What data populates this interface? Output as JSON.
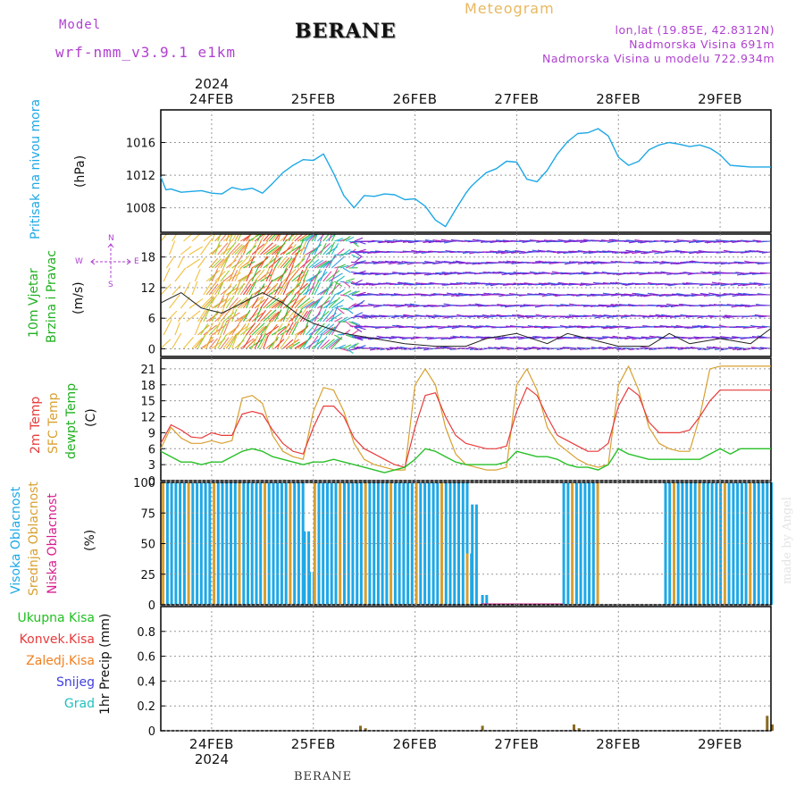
{
  "header": {
    "model_label": "Model",
    "model_name": "wrf-nmm_v3.9.1 e1km",
    "station": "BERANE",
    "product": "Meteogram",
    "lonlat": "lon,lat (19.85E, 42.8312N)",
    "elevation": "Nadmorska Visina 691m",
    "model_elevation": "Nadmorska Visina u modelu 722.934m"
  },
  "footer": {
    "station": "BERANE",
    "watermark": "made by Angel"
  },
  "colors": {
    "pressure": "#1ea8e6",
    "temp2m": "#e83a3a",
    "sfc": "#d8a030",
    "dewpt": "#28c028",
    "cloud_high": "#1ea8e6",
    "cloud_mid": "#d8a030",
    "cloud_low": "#d82090",
    "precip_total": "#20c020",
    "precip_conv": "#e83a3a",
    "precip_frz": "#f08020",
    "snow": "#4040e0",
    "graupel": "#20c0c0",
    "wind_label": "#20b020",
    "compass": "#b040d0"
  },
  "time_axis": {
    "top_year": "2024",
    "bottom_year": "2024",
    "days": [
      "24FEB",
      "25FEB",
      "26FEB",
      "27FEB",
      "28FEB",
      "29FEB"
    ]
  },
  "panels": {
    "pressure": {
      "label1": "Pritisak na nivou mora",
      "unit": "(hPa)"
    },
    "wind": {
      "label1": "10m Vjetar",
      "label2": "Brzina i Pravac",
      "unit": "(m/s)",
      "compass": {
        "n": "N",
        "s": "S",
        "e": "E",
        "w": "W"
      }
    },
    "temp": {
      "label1": "2m Temp",
      "label2": "SFC Temp",
      "label3": "dewpt Temp",
      "unit": "(C)"
    },
    "cloud": {
      "label1": "Visoka Oblacnost",
      "label2": "Srednja Oblacnost",
      "label3": "Niska Oblacnost",
      "unit": "(%)"
    },
    "precip": {
      "legend": [
        "Ukupna Kisa",
        "Konvek.Kisa",
        "Zaledj.Kisa",
        "Snijeg",
        "Grad"
      ],
      "unit": "1hr Precip (mm)"
    }
  },
  "chart_data": [
    {
      "type": "line",
      "panel": "pressure",
      "ylabel": "(hPa)",
      "ylim": [
        1005,
        1020
      ],
      "yticks": [
        1008,
        1012,
        1016
      ],
      "x_day_range": [
        -0.5,
        5.5
      ],
      "x_days": [
        -0.5,
        -0.45,
        -0.4,
        -0.3,
        -0.2,
        -0.1,
        0,
        0.1,
        0.2,
        0.3,
        0.4,
        0.5,
        0.6,
        0.7,
        0.8,
        0.9,
        1.0,
        1.1,
        1.2,
        1.3,
        1.4,
        1.5,
        1.6,
        1.7,
        1.8,
        1.9,
        2.0,
        2.1,
        2.2,
        2.3,
        2.4,
        2.5,
        2.55,
        2.6,
        2.7,
        2.8,
        2.9,
        3.0,
        3.1,
        3.2,
        3.3,
        3.4,
        3.5,
        3.6,
        3.7,
        3.8,
        3.9,
        4.0,
        4.1,
        4.2,
        4.3,
        4.4,
        4.5,
        4.6,
        4.7,
        4.8,
        4.9,
        5.0,
        5.1,
        5.2,
        5.3,
        5.4,
        5.5
      ],
      "series": [
        {
          "values": [
            1011.8,
            1010.2,
            1010.3,
            1009.9,
            1010.0,
            1010.1,
            1009.8,
            1009.7,
            1010.5,
            1010.2,
            1010.4,
            1009.8,
            1011.0,
            1012.3,
            1013.2,
            1013.9,
            1013.8,
            1014.6,
            1012.2,
            1009.5,
            1008.0,
            1009.5,
            1009.4,
            1009.7,
            1009.6,
            1009.0,
            1009.1,
            1008.2,
            1006.5,
            1005.7,
            1007.8,
            1009.8,
            1010.6,
            1011.2,
            1012.3,
            1012.8,
            1013.7,
            1013.6,
            1011.5,
            1011.2,
            1012.6,
            1014.6,
            1016.1,
            1017.1,
            1017.2,
            1017.7,
            1016.8,
            1014.2,
            1013.2,
            1013.7,
            1015.1,
            1015.7,
            1016.0,
            1015.8,
            1015.5,
            1015.7,
            1015.3,
            1014.5,
            1013.2,
            1013.1,
            1013.0,
            1013.0,
            1013.0
          ]
        }
      ]
    },
    {
      "type": "line",
      "panel": "wind",
      "ylabel": "(m/s)",
      "ylim": [
        -1.5,
        22.5
      ],
      "yticks": [
        0,
        6,
        12,
        18
      ],
      "x_day_range": [
        -0.5,
        5.5
      ],
      "x_days": [
        -0.5,
        -0.3,
        -0.1,
        0.1,
        0.3,
        0.5,
        0.7,
        0.9,
        1.0,
        1.3,
        1.6,
        1.9,
        2.2,
        2.5,
        2.7,
        3.0,
        3.3,
        3.5,
        3.7,
        4.0,
        4.3,
        4.5,
        4.7,
        5.0,
        5.3,
        5.5
      ],
      "series": [
        {
          "values": [
            9,
            11,
            8,
            7,
            9,
            11,
            9,
            6,
            5,
            3,
            2,
            1,
            0.5,
            0.5,
            2,
            3,
            1,
            3,
            2,
            0.5,
            0.5,
            3,
            1,
            2,
            1,
            4
          ]
        }
      ]
    },
    {
      "type": "line",
      "panel": "temp",
      "ylabel": "(C)",
      "ylim": [
        0,
        23
      ],
      "yticks": [
        0,
        3,
        6,
        9,
        12,
        15,
        18,
        21
      ],
      "x_day_range": [
        -0.5,
        5.5
      ],
      "x_days": [
        -0.5,
        -0.4,
        -0.3,
        -0.2,
        -0.1,
        0,
        0.1,
        0.2,
        0.3,
        0.4,
        0.5,
        0.6,
        0.7,
        0.8,
        0.9,
        1.0,
        1.1,
        1.2,
        1.3,
        1.4,
        1.5,
        1.6,
        1.7,
        1.8,
        1.9,
        2.0,
        2.1,
        2.2,
        2.3,
        2.4,
        2.5,
        2.6,
        2.7,
        2.8,
        2.9,
        3.0,
        3.1,
        3.2,
        3.3,
        3.4,
        3.5,
        3.6,
        3.7,
        3.8,
        3.9,
        4.0,
        4.1,
        4.2,
        4.3,
        4.4,
        4.5,
        4.6,
        4.7,
        4.8,
        4.9,
        5.0,
        5.1,
        5.2,
        5.3,
        5.4,
        5.5
      ],
      "series": [
        {
          "name": "2m Temp",
          "values": [
            7,
            10.5,
            9.5,
            8.2,
            8.0,
            9.0,
            8.5,
            8.5,
            12.5,
            13.0,
            12.5,
            9.5,
            7.0,
            5.5,
            5.0,
            10.0,
            14.0,
            14.0,
            12.0,
            8.0,
            6.0,
            5.0,
            4.0,
            3.0,
            2.5,
            10.0,
            16.0,
            16.5,
            12.0,
            8.5,
            7.0,
            6.5,
            6.0,
            6.0,
            6.5,
            13.0,
            17.5,
            16.0,
            12.0,
            8.5,
            7.5,
            6.5,
            5.5,
            5.5,
            7.0,
            14.0,
            17.5,
            16.0,
            11.0,
            9.0,
            9.0,
            9.0,
            9.5,
            12.0,
            15.0,
            17.0,
            17,
            17,
            17,
            17,
            17
          ]
        },
        {
          "name": "SFC Temp",
          "values": [
            6,
            10.0,
            8.0,
            7.0,
            7.0,
            7.5,
            7.0,
            7.5,
            15.5,
            16.0,
            14.5,
            8.5,
            5.5,
            4.5,
            4.0,
            13.0,
            17.5,
            17.0,
            13.0,
            7.0,
            4.0,
            3.0,
            2.5,
            2.0,
            2.0,
            18.0,
            21.0,
            18.0,
            10.0,
            5.0,
            3.0,
            2.5,
            2.0,
            2.0,
            2.5,
            18.0,
            21.0,
            17.0,
            10.0,
            7.0,
            5.5,
            4.0,
            3.0,
            2.5,
            3.0,
            18.0,
            21.5,
            17.0,
            10.0,
            7.0,
            6.0,
            5.5,
            5.5,
            12.0,
            21.0,
            21.5,
            21.5,
            21.5,
            21.5,
            21.5,
            21.5
          ]
        },
        {
          "name": "dewpt Temp",
          "values": [
            5.5,
            4.5,
            3.5,
            3.5,
            3.0,
            3.5,
            3.5,
            4.5,
            5.5,
            6.0,
            5.5,
            4.5,
            4.0,
            3.5,
            3.0,
            3.5,
            3.5,
            4.0,
            3.5,
            3.0,
            2.5,
            2.0,
            1.5,
            2.0,
            2.5,
            4.0,
            6.0,
            5.5,
            4.5,
            3.5,
            3.0,
            3.0,
            3.0,
            3.0,
            3.5,
            5.5,
            5.0,
            4.5,
            4.5,
            4.0,
            3.0,
            2.5,
            2.5,
            2.0,
            3.0,
            6.0,
            5.0,
            4.5,
            4.0,
            4.0,
            4.0,
            4.0,
            4.0,
            4.0,
            5.0,
            6.0,
            5.0,
            6.0,
            6.0,
            6.0,
            6.0
          ]
        }
      ]
    },
    {
      "type": "bar",
      "panel": "cloud",
      "ylabel": "(%)",
      "ylim": [
        0,
        100
      ],
      "yticks": [
        0,
        25,
        50,
        75,
        100
      ],
      "x_day_range": [
        -0.5,
        5.5
      ],
      "cover": [
        [
          -0.49,
          0.9,
          100
        ],
        [
          0.9,
          0.95,
          60
        ],
        [
          0.95,
          1.0,
          27
        ],
        [
          1.0,
          1.5,
          100
        ],
        [
          1.5,
          2.5,
          100
        ],
        [
          2.5,
          2.55,
          42
        ],
        [
          2.55,
          2.6,
          82
        ],
        [
          2.65,
          2.7,
          8
        ],
        [
          3.45,
          3.8,
          100
        ],
        [
          4.45,
          5.5,
          100
        ]
      ],
      "series": [
        {
          "name": "Visoka Oblacnost",
          "values": []
        },
        {
          "name": "Srednja Oblacnost",
          "values": []
        },
        {
          "name": "Niska Oblacnost",
          "values": []
        }
      ]
    },
    {
      "type": "bar",
      "panel": "precip",
      "ylabel": "1hr Precip (mm)",
      "ylim": [
        0,
        1.0
      ],
      "yticks": [
        0,
        0.2,
        0.4,
        0.6,
        0.8
      ],
      "x_day_range": [
        -0.5,
        5.5
      ],
      "x_days": [
        1.45,
        1.5,
        2.65,
        3.55,
        3.6,
        5.45,
        5.5
      ],
      "series": [
        {
          "name": "Ukupna Kisa",
          "values": [
            0.04,
            0.02,
            0.04,
            0.05,
            0.02,
            0.12,
            0.05
          ]
        }
      ]
    }
  ]
}
